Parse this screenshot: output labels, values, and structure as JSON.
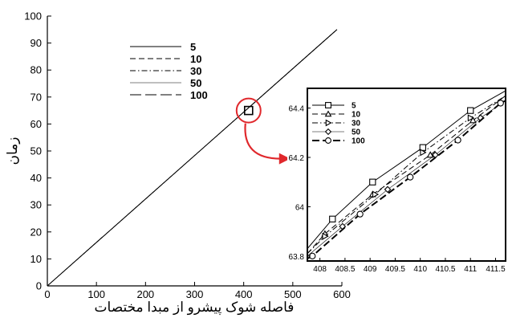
{
  "chart_data": [
    {
      "type": "line",
      "xlabel": "فاصله شوک پیشرو از مبدا مختصات",
      "ylabel": "زمان",
      "xlim": [
        0,
        600
      ],
      "ylim": [
        0,
        100
      ],
      "x_ticks": [
        "0",
        "100",
        "200",
        "300",
        "400",
        "500",
        "600"
      ],
      "y_ticks": [
        "0",
        "10",
        "20",
        "30",
        "40",
        "50",
        "60",
        "70",
        "80",
        "90",
        "100"
      ],
      "grid": false,
      "legend_position": "top-center",
      "series": [
        {
          "name": "5",
          "style": "solid",
          "x": [
            0,
            590
          ],
          "y": [
            0,
            95
          ]
        },
        {
          "name": "10",
          "style": "dashed",
          "x": [
            0,
            590
          ],
          "y": [
            0,
            95
          ]
        },
        {
          "name": "30",
          "style": "dash-dot",
          "x": [
            0,
            590
          ],
          "y": [
            0,
            95
          ]
        },
        {
          "name": "50",
          "style": "thin-solid",
          "x": [
            0,
            590
          ],
          "y": [
            0,
            95
          ]
        },
        {
          "name": "100",
          "style": "long-dash",
          "x": [
            0,
            590
          ],
          "y": [
            0,
            95
          ]
        }
      ],
      "highlight_marker": {
        "x": 410,
        "y": 65
      }
    },
    {
      "type": "line",
      "inset": true,
      "xlim": [
        407.75,
        411.7
      ],
      "ylim": [
        63.78,
        64.48
      ],
      "x_ticks": [
        "408",
        "408.5",
        "409",
        "409.5",
        "410",
        "410.5",
        "411",
        "411.5"
      ],
      "y_ticks": [
        "63.8",
        "64",
        "64.2",
        "64.4"
      ],
      "grid": false,
      "legend_position": "top-left",
      "series": [
        {
          "name": "5",
          "marker": "square",
          "style": "solid",
          "x": [
            407.75,
            408.25,
            409.05,
            410.05,
            411.0,
            411.7
          ],
          "y": [
            63.83,
            63.95,
            64.1,
            64.24,
            64.39,
            64.47
          ]
        },
        {
          "name": "10",
          "marker": "triangle",
          "style": "dashed",
          "x": [
            407.75,
            408.1,
            409.05,
            410.2,
            411.05,
            411.7
          ],
          "y": [
            63.81,
            63.89,
            64.05,
            64.21,
            64.35,
            64.45
          ]
        },
        {
          "name": "30",
          "marker": "triangle-right",
          "style": "dash-dot",
          "x": [
            407.75,
            408.1,
            409.1,
            410.05,
            411.0,
            411.7
          ],
          "y": [
            63.81,
            63.88,
            64.05,
            64.22,
            64.36,
            64.45
          ]
        },
        {
          "name": "50",
          "marker": "diamond",
          "style": "thin-solid",
          "x": [
            407.75,
            408.45,
            409.35,
            410.3,
            411.2,
            411.7
          ],
          "y": [
            63.8,
            63.92,
            64.07,
            64.21,
            64.36,
            64.43
          ]
        },
        {
          "name": "100",
          "marker": "circle",
          "style": "thick-long-dash",
          "x": [
            407.75,
            407.85,
            408.8,
            409.8,
            410.75,
            411.6,
            411.7
          ],
          "y": [
            63.79,
            63.8,
            63.97,
            64.12,
            64.27,
            64.42,
            64.43
          ]
        }
      ]
    }
  ]
}
